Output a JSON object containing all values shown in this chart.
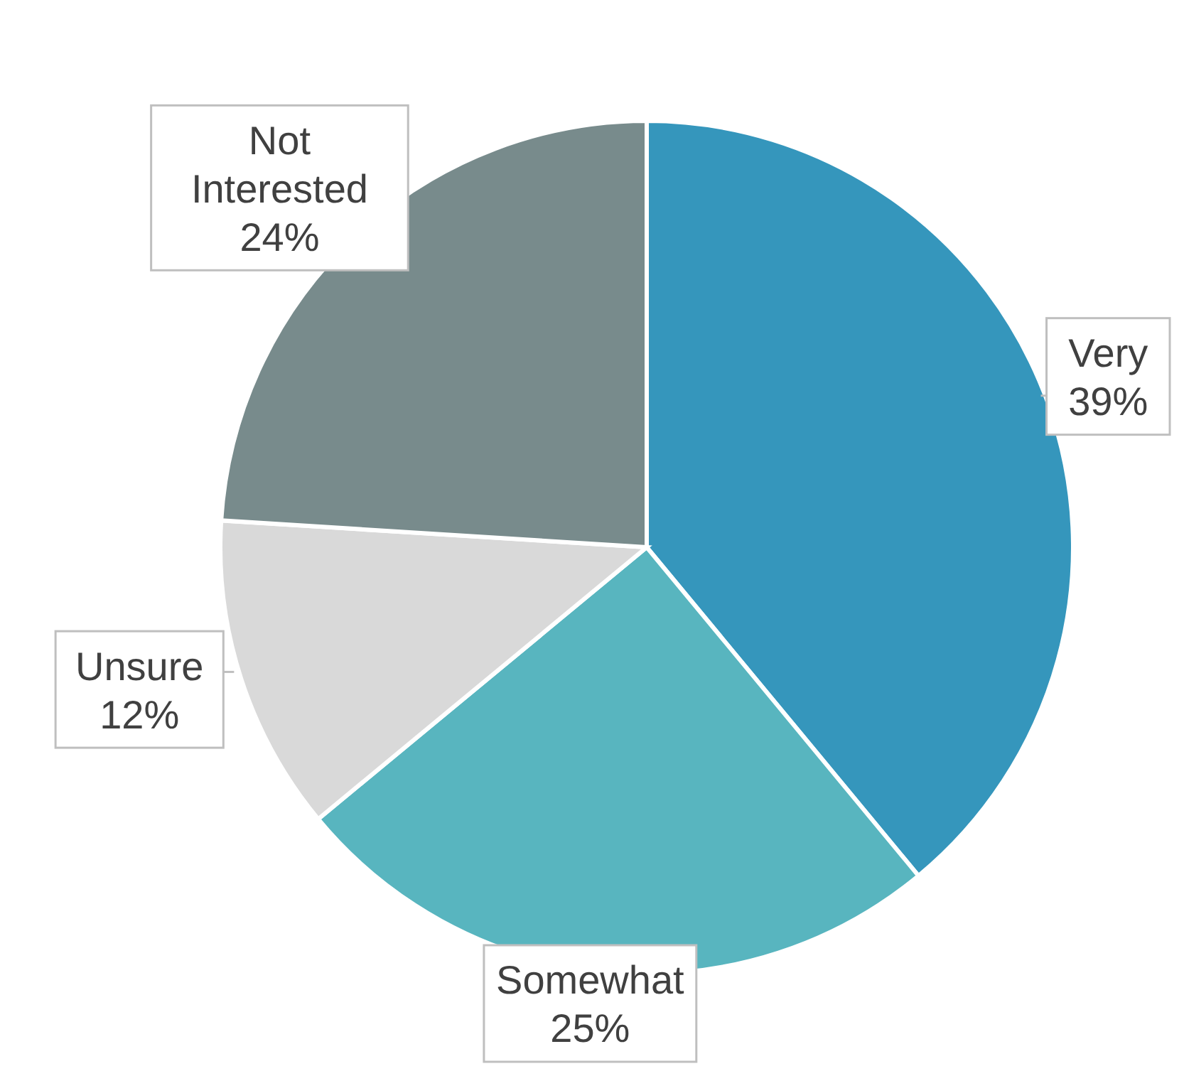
{
  "chart_data": {
    "type": "pie",
    "categories": [
      "Very",
      "Somewhat",
      "Unsure",
      "Not Interested"
    ],
    "values": [
      39,
      25,
      12,
      24
    ],
    "value_labels": [
      "39%",
      "25%",
      "12%",
      "24%"
    ],
    "colors": [
      "#3596bc",
      "#58b5bf",
      "#d9d9d9",
      "#788b8c"
    ],
    "legend": false
  }
}
